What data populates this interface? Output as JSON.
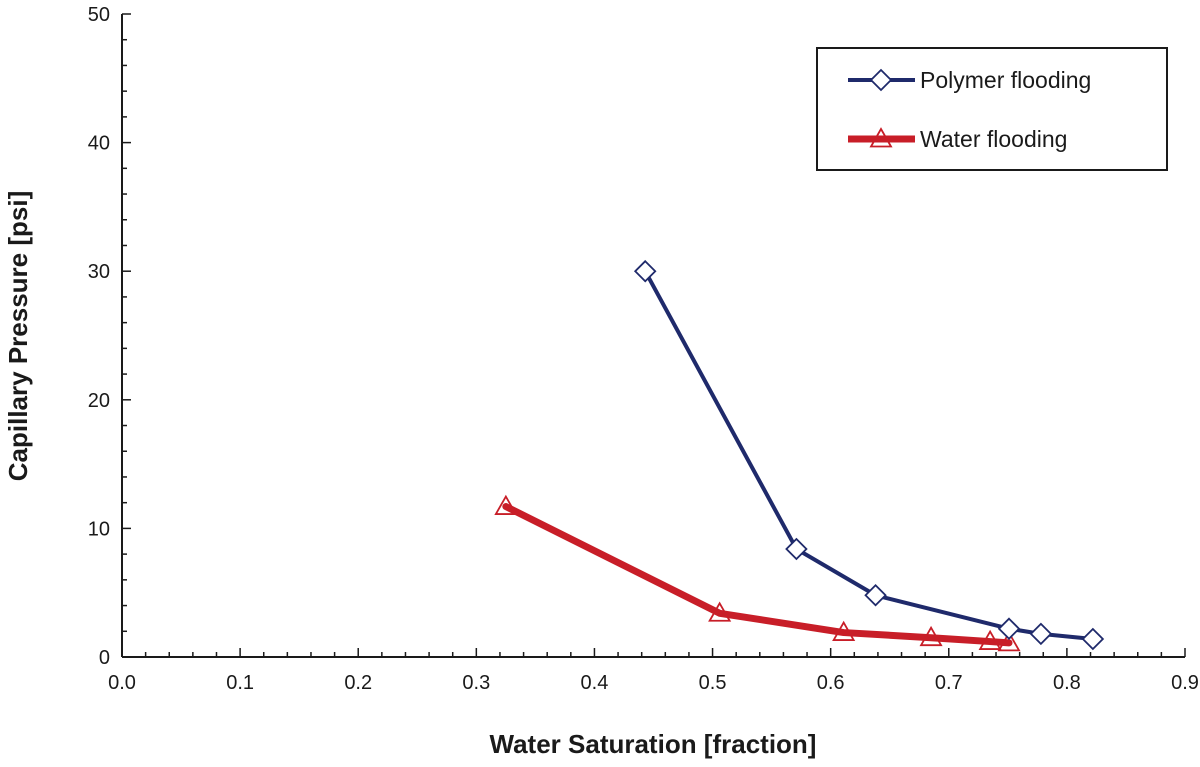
{
  "chart_data": {
    "type": "line",
    "title": "",
    "xlabel": "Water Saturation [fraction]",
    "ylabel": "Capillary Pressure [psi]",
    "xlim": [
      0.0,
      0.9
    ],
    "ylim": [
      0,
      50
    ],
    "x_ticks": [
      "0.0",
      "0.1",
      "0.2",
      "0.3",
      "0.4",
      "0.5",
      "0.6",
      "0.7",
      "0.8",
      "0.9"
    ],
    "y_ticks": [
      "0",
      "10",
      "20",
      "30",
      "40",
      "50"
    ],
    "grid": false,
    "legend_position": "top-right",
    "series": [
      {
        "name": "Polymer flooding",
        "color": "#1f2a6b",
        "marker": "diamond",
        "x": [
          0.443,
          0.571,
          0.638,
          0.751,
          0.778,
          0.822
        ],
        "y": [
          30.0,
          8.4,
          4.8,
          2.2,
          1.8,
          1.4
        ]
      },
      {
        "name": "Water flooding",
        "color": "#c81e28",
        "marker": "triangle",
        "x": [
          0.325,
          0.506,
          0.611,
          0.685,
          0.735,
          0.751
        ],
        "y": [
          11.7,
          3.4,
          1.9,
          1.5,
          1.2,
          1.1
        ]
      }
    ]
  }
}
